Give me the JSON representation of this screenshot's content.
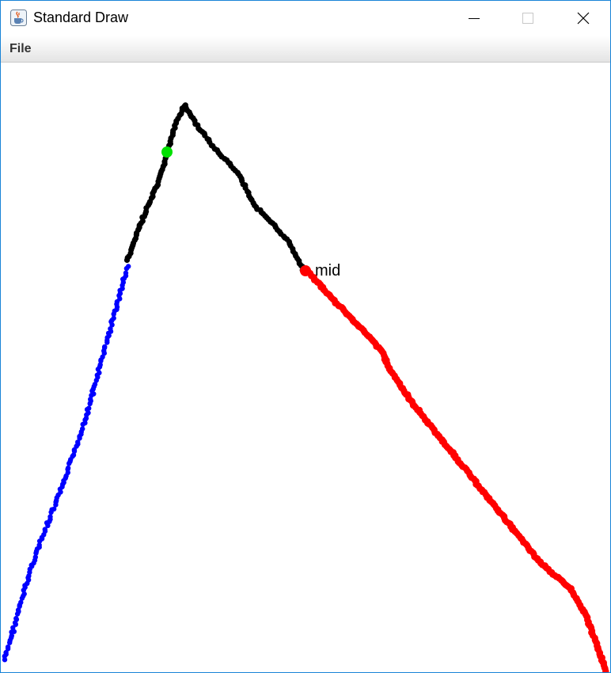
{
  "window": {
    "title": "Standard Draw",
    "icon": "java-cup-icon",
    "controls": [
      "minimize-icon",
      "maximize-icon",
      "close-icon"
    ]
  },
  "menu": {
    "items": [
      "File"
    ]
  },
  "canvas": {
    "label_mid": "mid",
    "colors": {
      "left_segment": "#0000ff",
      "top_segment": "#000000",
      "right_segment": "#ff0000",
      "green_marker": "#00e000",
      "red_marker": "#ff0000"
    }
  }
}
